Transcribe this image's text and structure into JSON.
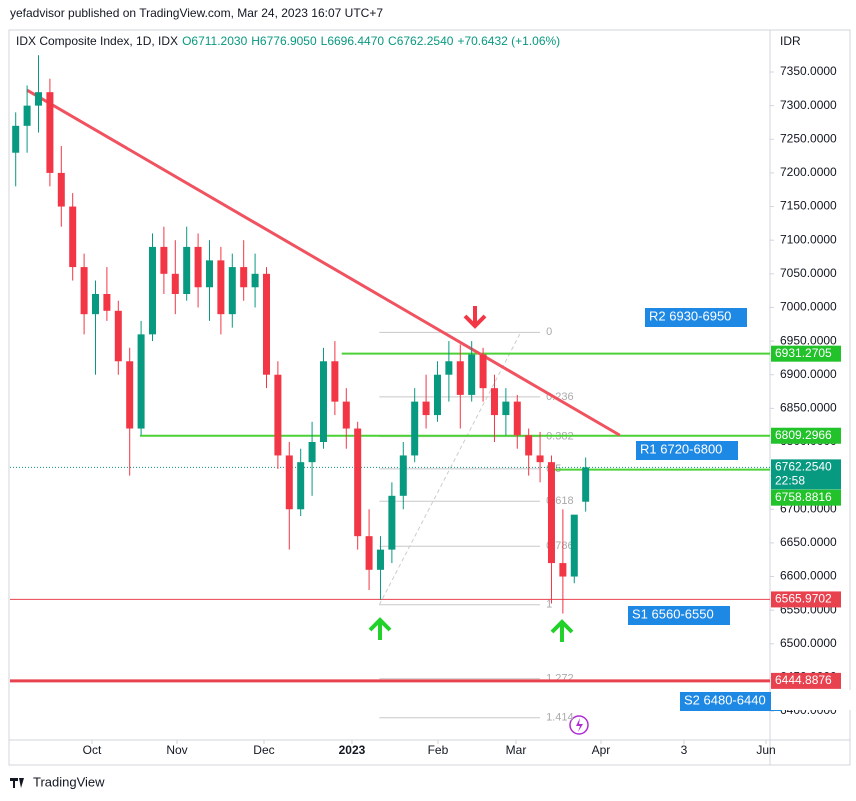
{
  "header": {
    "publisher": "yefadvisor published on TradingView.com, Mar 24, 2023 16:07 UTC+7",
    "footer": "TradingView"
  },
  "chart_data": {
    "type": "candlestick",
    "symbol": "IDX Composite Index, 1D, IDX",
    "ohlc_text": [
      "O6711.2030",
      "H6776.9050",
      "L6696.4470",
      "C6762.2540",
      "+70.6432 (+1.06%)"
    ],
    "currency": "IDR",
    "up_color": "#089981",
    "down_color": "#f23645",
    "open": [
      7230,
      7270,
      7300,
      7320,
      7200,
      7150,
      7060,
      6990,
      7020,
      6995,
      6920,
      6820,
      6960,
      7090,
      7050,
      7020,
      7090,
      7030,
      7070,
      6990,
      7060,
      7030,
      7050,
      6900,
      6780,
      6700,
      6770,
      6800,
      6920,
      6860,
      6820,
      6660,
      6610,
      6640,
      6720,
      6780,
      6860,
      6840,
      6900,
      6920,
      6870,
      6930,
      6880,
      6840,
      6860,
      6810,
      6780,
      6770,
      6620,
      6600,
      6711.203
    ],
    "high": [
      7290,
      7330,
      7375,
      7340,
      7240,
      7170,
      7080,
      7040,
      7060,
      7010,
      6940,
      6980,
      7110,
      7120,
      7100,
      7120,
      7110,
      7100,
      7090,
      7080,
      7100,
      7080,
      7060,
      6920,
      6800,
      6790,
      6830,
      6940,
      6950,
      6880,
      6830,
      6700,
      6660,
      6740,
      6800,
      6880,
      6900,
      6920,
      6950,
      6945,
      6950,
      6940,
      6900,
      6880,
      6870,
      6820,
      6815,
      6780,
      6700,
      6690,
      6776.905
    ],
    "low": [
      7180,
      7230,
      7260,
      7180,
      7120,
      7040,
      6960,
      6900,
      6980,
      6900,
      6750,
      6810,
      6950,
      7020,
      6990,
      7010,
      7000,
      6980,
      6960,
      6970,
      7010,
      7000,
      6880,
      6760,
      6640,
      6690,
      6720,
      6790,
      6840,
      6790,
      6640,
      6580,
      6565,
      6620,
      6700,
      6770,
      6820,
      6830,
      6860,
      6820,
      6860,
      6860,
      6800,
      6810,
      6790,
      6750,
      6740,
      6560,
      6545,
      6590,
      6696.447
    ],
    "close": [
      7270,
      7300,
      7320,
      7200,
      7150,
      7060,
      6990,
      7020,
      6995,
      6920,
      6820,
      6960,
      7090,
      7050,
      7020,
      7090,
      7030,
      7070,
      6990,
      7060,
      7030,
      7050,
      6900,
      6780,
      6700,
      6770,
      6800,
      6920,
      6860,
      6820,
      6660,
      6610,
      6640,
      6720,
      6780,
      6860,
      6840,
      6900,
      6920,
      6870,
      6930,
      6880,
      6840,
      6860,
      6810,
      6780,
      6770,
      6620,
      6600,
      6692,
      6762.254
    ],
    "xlim": [
      0,
      66.67
    ],
    "xticks": [
      {
        "value": 7.19,
        "label": "Oct"
      },
      {
        "value": 14.65,
        "label": "Nov"
      },
      {
        "value": 22.28,
        "label": "Dec"
      },
      {
        "value": 30.0,
        "label": "2023"
      },
      {
        "value": 37.54,
        "label": "Feb"
      },
      {
        "value": 44.39,
        "label": "Mar"
      },
      {
        "value": 51.84,
        "label": "Apr"
      },
      {
        "value": 59.12,
        "label": "3"
      },
      {
        "value": 66.32,
        "label": "Jun"
      }
    ],
    "ylim": [
      6357,
      7405
    ],
    "yticks": [
      {
        "value": 6400,
        "label": "6400.0000"
      },
      {
        "value": 6450,
        "label": "6450.0000"
      },
      {
        "value": 6500,
        "label": "6500.0000"
      },
      {
        "value": 6550,
        "label": "6550.0000"
      },
      {
        "value": 6600,
        "label": "6600.0000"
      },
      {
        "value": 6650,
        "label": "6650.0000"
      },
      {
        "value": 6700,
        "label": "6700.0000"
      },
      {
        "value": 6750,
        "label": "6750.0000"
      },
      {
        "value": 6800,
        "label": "6800.0000"
      },
      {
        "value": 6850,
        "label": "6850.0000"
      },
      {
        "value": 6900,
        "label": "6900.0000"
      },
      {
        "value": 6950,
        "label": "6950.0000"
      },
      {
        "value": 7000,
        "label": "7000.0000"
      },
      {
        "value": 7050,
        "label": "7050.0000"
      },
      {
        "value": 7100,
        "label": "7100.0000"
      },
      {
        "value": 7150,
        "label": "7150.0000"
      },
      {
        "value": 7200,
        "label": "7200.0000"
      },
      {
        "value": 7250,
        "label": "7250.0000"
      },
      {
        "value": 7300,
        "label": "7300.0000"
      },
      {
        "value": 7350,
        "label": "7350.0000"
      }
    ],
    "trendline": {
      "color": "#f0525f",
      "x": [
        1.5,
        53.5
      ],
      "y": [
        7323,
        6810
      ]
    },
    "levels": [
      {
        "value": 6931.2705,
        "color": "#4cd137",
        "from": 29.1,
        "width": 2
      },
      {
        "value": 6809.2966,
        "color": "#4cd137",
        "from": 11.4,
        "width": 2
      },
      {
        "value": 6758.8816,
        "color": "#4cd137",
        "from": 47.8,
        "width": 2
      },
      {
        "value": 6565.9702,
        "color": "#e8424f",
        "from": 0,
        "width": 1
      },
      {
        "value": 6444.8876,
        "color": "#e8424f",
        "from": 0,
        "width": 3
      }
    ],
    "last_price": {
      "value": 6762.254,
      "label": "6762.2540",
      "countdown": "22:58"
    },
    "fib": {
      "from": 32.4,
      "to": 46.5,
      "levels": [
        {
          "value": 6963,
          "label": "0"
        },
        {
          "value": 6867,
          "label": "0.236"
        },
        {
          "value": 6808,
          "label": "0.382"
        },
        {
          "value": 6760,
          "label": "0.5"
        },
        {
          "value": 6712,
          "label": "0.618"
        },
        {
          "value": 6645,
          "label": "0.786"
        },
        {
          "value": 6558,
          "label": "1"
        },
        {
          "value": 6448,
          "label": "1.272"
        },
        {
          "value": 6390,
          "label": "1.414"
        }
      ]
    },
    "zones": [
      "R2 6930-6950",
      "R1 6720-6800",
      "S1 6560-6550",
      "S2 6480-6440"
    ]
  }
}
